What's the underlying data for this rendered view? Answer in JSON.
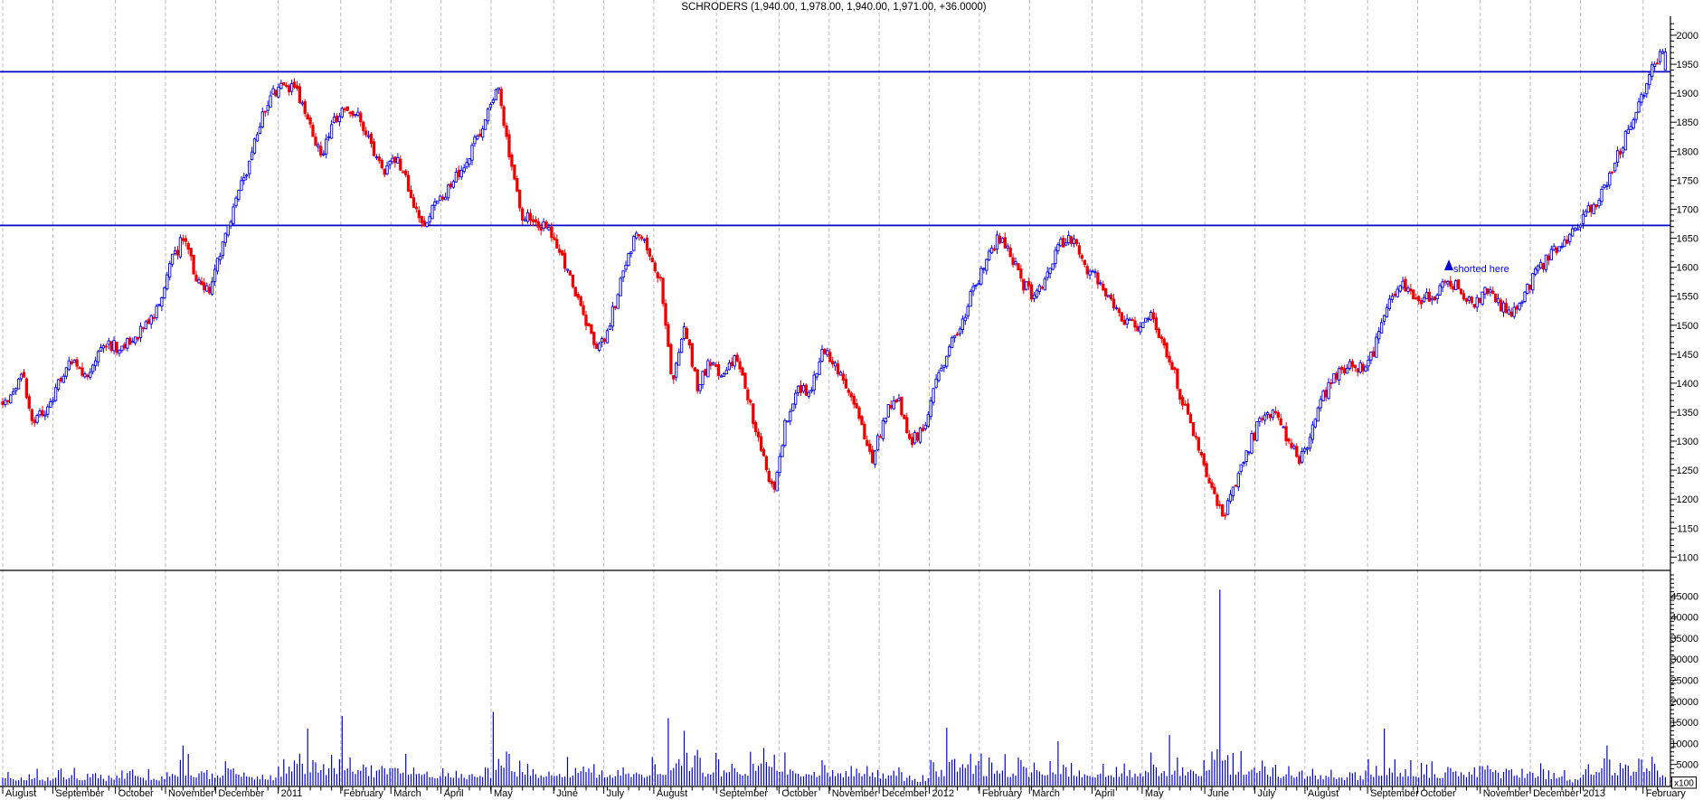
{
  "title": "SCHRODERS (1,940.00, 1,978.00, 1,940.00, 1,971.00, +36.0000)",
  "annotation": {
    "text": "shorted here"
  },
  "axis": {
    "price_min": 1100,
    "price_max": 2000,
    "price_label_step": 50,
    "price_minor_step": 10,
    "volume_label_step": 5000,
    "volume_max_label": 45000,
    "volume_minor_step": 1000,
    "volume_unit_label": "x100"
  },
  "colors": {
    "up": "#0000ee",
    "down": "#ee0000",
    "level": "#0000cc",
    "grid": "#b9b9b9",
    "axis": "#000000",
    "volume": "#0000dd",
    "annotation": "#0000e0",
    "background": "#ffffff"
  },
  "chart_data": {
    "type": "candlestick+volume",
    "symbol": "SCHRODERS",
    "last_quote": {
      "open": 1940,
      "high": 1978,
      "low": 1940,
      "close": 1971,
      "change": "+36.0000"
    },
    "period": "August 2010 - February 2013, daily bars",
    "ylim_price": [
      1100,
      2000
    ],
    "ylim_volume": [
      0,
      48000
    ],
    "volume_unit": "x100",
    "horizontal_lines": [
      1937,
      1672
    ],
    "legend_position": "none",
    "grid": "vertical-dashed-monthly",
    "months": [
      {
        "label": "August",
        "weeks": 4
      },
      {
        "label": "September",
        "weeks": 5
      },
      {
        "label": "October",
        "weeks": 4
      },
      {
        "label": "November",
        "weeks": 4
      },
      {
        "label": "December",
        "weeks": 5
      },
      {
        "label": "2011",
        "weeks": 5
      },
      {
        "label": "February",
        "weeks": 4
      },
      {
        "label": "March",
        "weeks": 4
      },
      {
        "label": "April",
        "weeks": 4
      },
      {
        "label": "May",
        "weeks": 5
      },
      {
        "label": "June",
        "weeks": 4
      },
      {
        "label": "July",
        "weeks": 4
      },
      {
        "label": "August",
        "weeks": 5
      },
      {
        "label": "September",
        "weeks": 5
      },
      {
        "label": "October",
        "weeks": 4
      },
      {
        "label": "November",
        "weeks": 4
      },
      {
        "label": "December",
        "weeks": 4
      },
      {
        "label": "2012",
        "weeks": 4
      },
      {
        "label": "February",
        "weeks": 4
      },
      {
        "label": "March",
        "weeks": 5
      },
      {
        "label": "April",
        "weeks": 4
      },
      {
        "label": "May",
        "weeks": 5
      },
      {
        "label": "June",
        "weeks": 4
      },
      {
        "label": "July",
        "weeks": 4
      },
      {
        "label": "August",
        "weeks": 5
      },
      {
        "label": "September",
        "weeks": 4
      },
      {
        "label": "October",
        "weeks": 5
      },
      {
        "label": "November",
        "weeks": 4
      },
      {
        "label": "December",
        "weeks": 4
      },
      {
        "label": "2013",
        "weeks": 5
      },
      {
        "label": "February",
        "weeks": 2
      }
    ],
    "weekly_close_anchors": [
      1370,
      1420,
      1330,
      1355,
      1400,
      1440,
      1405,
      1445,
      1465,
      1460,
      1480,
      1500,
      1535,
      1610,
      1655,
      1575,
      1555,
      1635,
      1700,
      1770,
      1845,
      1895,
      1920,
      1900,
      1845,
      1795,
      1850,
      1880,
      1855,
      1805,
      1760,
      1790,
      1730,
      1665,
      1720,
      1730,
      1765,
      1805,
      1850,
      1920,
      1780,
      1690,
      1675,
      1665,
      1630,
      1570,
      1510,
      1450,
      1505,
      1590,
      1655,
      1640,
      1575,
      1400,
      1500,
      1390,
      1440,
      1405,
      1445,
      1375,
      1290,
      1210,
      1330,
      1395,
      1385,
      1460,
      1430,
      1395,
      1330,
      1270,
      1350,
      1375,
      1300,
      1320,
      1400,
      1455,
      1500,
      1560,
      1610,
      1650,
      1625,
      1570,
      1545,
      1590,
      1640,
      1650,
      1600,
      1580,
      1545,
      1510,
      1495,
      1520,
      1480,
      1420,
      1350,
      1290,
      1220,
      1170,
      1230,
      1290,
      1340,
      1355,
      1305,
      1270,
      1310,
      1380,
      1415,
      1435,
      1425,
      1455,
      1530,
      1570,
      1555,
      1545,
      1555,
      1575,
      1560,
      1535,
      1560,
      1535,
      1520,
      1555,
      1590,
      1620,
      1640,
      1660,
      1700,
      1715,
      1770,
      1820,
      1865,
      1935,
      1971
    ],
    "weekly_volume_avg_x100": [
      3000,
      2800,
      3200,
      2600,
      3000,
      3500,
      3000,
      2800,
      2600,
      3200,
      3600,
      3000,
      2800,
      4200,
      5200,
      4600,
      3800,
      4000,
      4800,
      4200,
      3600,
      3000,
      5200,
      6000,
      6800,
      5400,
      5200,
      7500,
      5200,
      4800,
      5600,
      5400,
      6200,
      4600,
      4200,
      3800,
      4400,
      3600,
      4000,
      8200,
      6800,
      5200,
      4400,
      4000,
      4400,
      4800,
      5200,
      4400,
      4600,
      5000,
      4200,
      4600,
      6200,
      9000,
      8000,
      6400,
      5200,
      5200,
      4800,
      5400,
      6400,
      7400,
      6000,
      5200,
      4600,
      4200,
      4400,
      4800,
      5200,
      4400,
      3800,
      3400,
      2400,
      2000,
      4400,
      5200,
      5600,
      5200,
      5600,
      5200,
      4800,
      5200,
      5200,
      5600,
      6400,
      5200,
      4800,
      4400,
      4800,
      4400,
      4000,
      4800,
      5200,
      6200,
      5600,
      5200,
      7200,
      8000,
      5600,
      4800,
      4400,
      4800,
      4200,
      3800,
      4000,
      3600,
      3400,
      3200,
      3000,
      4400,
      5600,
      5200,
      4800,
      4400,
      4000,
      3800,
      4200,
      4400,
      4600,
      4200,
      4400,
      4000,
      3800,
      3400,
      2400,
      1600,
      4200,
      4600,
      5200,
      4800,
      5600,
      5200,
      4800
    ],
    "volume_spikes": [
      {
        "day": 68,
        "value": 9500
      },
      {
        "day": 115,
        "value": 13500
      },
      {
        "day": 128,
        "value": 16500
      },
      {
        "day": 185,
        "value": 17500
      },
      {
        "day": 251,
        "value": 16000
      },
      {
        "day": 257,
        "value": 13000
      },
      {
        "day": 356,
        "value": 13700
      },
      {
        "day": 398,
        "value": 10500
      },
      {
        "day": 440,
        "value": 12000
      },
      {
        "day": 459,
        "value": 46500
      },
      {
        "day": 521,
        "value": 13500
      },
      {
        "day": 605,
        "value": 9500
      }
    ]
  },
  "render": {
    "seed": 1337,
    "days_per_week": 4.722,
    "close_noise": 11,
    "open_jitter": 7,
    "wick_extent": 9
  }
}
